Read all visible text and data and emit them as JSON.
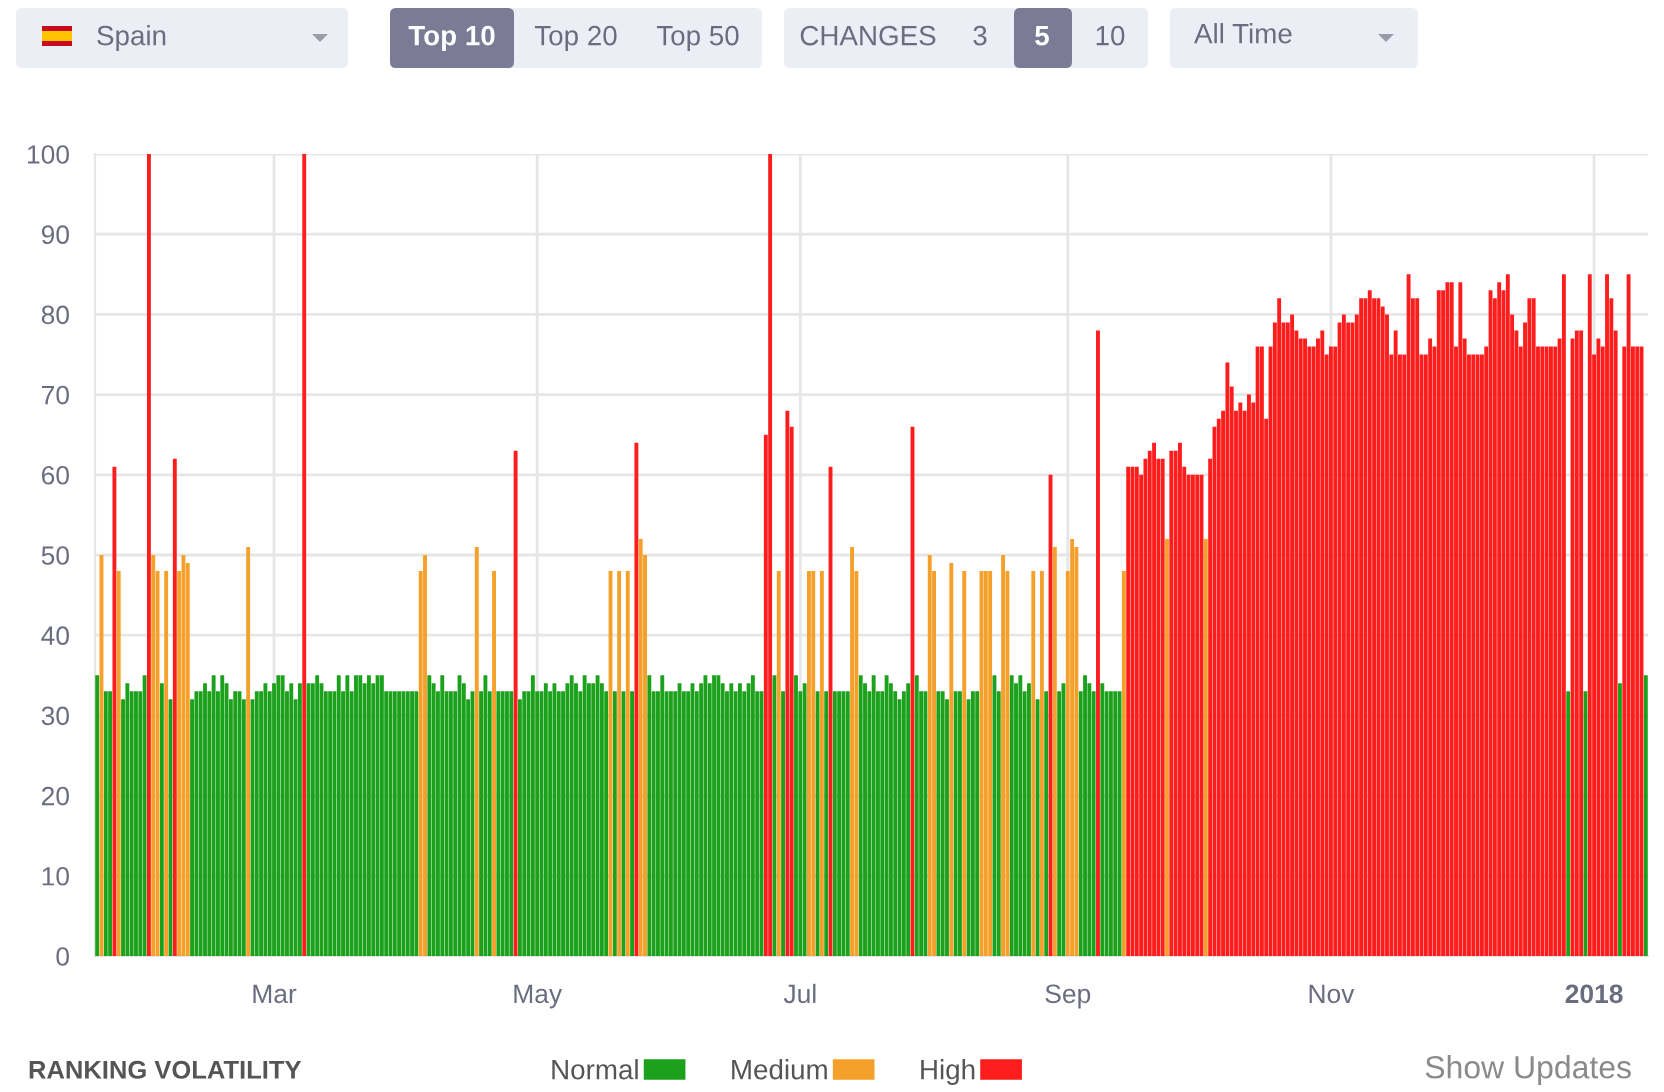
{
  "chart_data": {
    "type": "bar",
    "title": "RANKING VOLATILITY",
    "annotations": [
      "Spain",
      "Top 10",
      "Top 20",
      "Top 50",
      "CHANGES",
      "3",
      "5",
      "10",
      "All Time",
      "Show Updates"
    ],
    "series": [
      {
        "name": "Normal",
        "color": "#1ca11c",
        "x": [
          "2017-01-19",
          "2017-01-21",
          "2017-01-22",
          "2017-01-25",
          "2017-01-26",
          "2017-01-27",
          "2017-01-28",
          "2017-01-29",
          "2017-01-30",
          "2017-02-03",
          "2017-02-05",
          "2017-02-10",
          "2017-02-11",
          "2017-02-12",
          "2017-02-13",
          "2017-02-14",
          "2017-02-15",
          "2017-02-16",
          "2017-02-17",
          "2017-02-18",
          "2017-02-19",
          "2017-02-20",
          "2017-02-21",
          "2017-02-22",
          "2017-02-24",
          "2017-02-25",
          "2017-02-26",
          "2017-02-27",
          "2017-02-28",
          "2017-03-01",
          "2017-03-02",
          "2017-03-03",
          "2017-03-04",
          "2017-03-05",
          "2017-03-06",
          "2017-03-07",
          "2017-03-09",
          "2017-03-10",
          "2017-03-11",
          "2017-03-12",
          "2017-03-13",
          "2017-03-14",
          "2017-03-15",
          "2017-03-16",
          "2017-03-17",
          "2017-03-18",
          "2017-03-19",
          "2017-03-20",
          "2017-03-21",
          "2017-03-22",
          "2017-03-23",
          "2017-03-24",
          "2017-03-25",
          "2017-03-26",
          "2017-03-27",
          "2017-03-28",
          "2017-03-29",
          "2017-03-30",
          "2017-03-31",
          "2017-04-01",
          "2017-04-02",
          "2017-04-03",
          "2017-04-06",
          "2017-04-07",
          "2017-04-08",
          "2017-04-09",
          "2017-04-10",
          "2017-04-11",
          "2017-04-12",
          "2017-04-13",
          "2017-04-14",
          "2017-04-15",
          "2017-04-16",
          "2017-04-18",
          "2017-04-19",
          "2017-04-20",
          "2017-04-22",
          "2017-04-23",
          "2017-04-24",
          "2017-04-25",
          "2017-04-27",
          "2017-04-28",
          "2017-04-29",
          "2017-04-30",
          "2017-05-01",
          "2017-05-02",
          "2017-05-03",
          "2017-05-04",
          "2017-05-05",
          "2017-05-06",
          "2017-05-07",
          "2017-05-08",
          "2017-05-09",
          "2017-05-10",
          "2017-05-11",
          "2017-05-12",
          "2017-05-13",
          "2017-05-14",
          "2017-05-15",
          "2017-05-16",
          "2017-05-17",
          "2017-05-19",
          "2017-05-21",
          "2017-05-23",
          "2017-05-27",
          "2017-05-28",
          "2017-05-29",
          "2017-05-30",
          "2017-05-31",
          "2017-06-01",
          "2017-06-02",
          "2017-06-03",
          "2017-06-04",
          "2017-06-05",
          "2017-06-06",
          "2017-06-07",
          "2017-06-08",
          "2017-06-09",
          "2017-06-10",
          "2017-06-11",
          "2017-06-12",
          "2017-06-13",
          "2017-06-14",
          "2017-06-15",
          "2017-06-16",
          "2017-06-17",
          "2017-06-18",
          "2017-06-19",
          "2017-06-20",
          "2017-06-21",
          "2017-06-22",
          "2017-06-25",
          "2017-06-27",
          "2017-06-30",
          "2017-07-01",
          "2017-07-02",
          "2017-07-05",
          "2017-07-07",
          "2017-07-09",
          "2017-07-10",
          "2017-07-11",
          "2017-07-12",
          "2017-07-15",
          "2017-07-16",
          "2017-07-17",
          "2017-07-18",
          "2017-07-19",
          "2017-07-20",
          "2017-07-21",
          "2017-07-22",
          "2017-07-23",
          "2017-07-24",
          "2017-07-25",
          "2017-07-26",
          "2017-07-28",
          "2017-07-29",
          "2017-07-30",
          "2017-08-02",
          "2017-08-03",
          "2017-08-04",
          "2017-08-06",
          "2017-08-07",
          "2017-08-09",
          "2017-08-10",
          "2017-08-11",
          "2017-08-15",
          "2017-08-16",
          "2017-08-19",
          "2017-08-20",
          "2017-08-21",
          "2017-08-22",
          "2017-08-23",
          "2017-08-25",
          "2017-08-27",
          "2017-08-30",
          "2017-08-31",
          "2017-09-04",
          "2017-09-05",
          "2017-09-06",
          "2017-09-07",
          "2017-09-09",
          "2017-09-10",
          "2017-09-11",
          "2017-09-12",
          "2017-09-13",
          "2017-12-26",
          "2017-12-30",
          "2018-01-07",
          "2018-01-13"
        ],
        "values": [
          35,
          33,
          33,
          32,
          34,
          33,
          33,
          33,
          35,
          34,
          32,
          32,
          33,
          33,
          34,
          33,
          35,
          33,
          35,
          34,
          32,
          33,
          33,
          32,
          32,
          33,
          33,
          34,
          33,
          34,
          35,
          35,
          33,
          34,
          32,
          34,
          34,
          34,
          35,
          34,
          33,
          33,
          33,
          35,
          33,
          35,
          33,
          35,
          35,
          34,
          35,
          34,
          35,
          35,
          33,
          33,
          33,
          33,
          33,
          33,
          33,
          33,
          35,
          34,
          33,
          35,
          33,
          33,
          33,
          35,
          34,
          32,
          33,
          33,
          35,
          33,
          33,
          33,
          33,
          33,
          32,
          33,
          33,
          35,
          33,
          33,
          34,
          33,
          34,
          33,
          33,
          34,
          35,
          34,
          33,
          35,
          34,
          34,
          35,
          34,
          33,
          33,
          33,
          33,
          35,
          33,
          33,
          35,
          33,
          33,
          33,
          34,
          33,
          33,
          34,
          33,
          34,
          35,
          34,
          35,
          35,
          34,
          33,
          34,
          33,
          34,
          33,
          34,
          35,
          33,
          33,
          35,
          33,
          35,
          33,
          34,
          33,
          33,
          33,
          33,
          33,
          33,
          35,
          34,
          33,
          35,
          33,
          33,
          35,
          34,
          33,
          32,
          33,
          34,
          35,
          33,
          33,
          33,
          33,
          32,
          33,
          33,
          32,
          33,
          33,
          35,
          33,
          35,
          34,
          35,
          33,
          34,
          32,
          33,
          33,
          34,
          33,
          35,
          34,
          33,
          34,
          33,
          33,
          33,
          33,
          33,
          33,
          34,
          35
        ]
      },
      {
        "name": "Medium",
        "color": "#f4a02a",
        "x": [
          "2017-01-20",
          "2017-01-24",
          "2017-02-01",
          "2017-02-02",
          "2017-02-04",
          "2017-02-07",
          "2017-02-08",
          "2017-02-09",
          "2017-02-23",
          "2017-04-04",
          "2017-04-05",
          "2017-04-17",
          "2017-04-21",
          "2017-05-18",
          "2017-05-20",
          "2017-05-22",
          "2017-05-25",
          "2017-05-26",
          "2017-06-26",
          "2017-07-03",
          "2017-07-04",
          "2017-07-06",
          "2017-07-13",
          "2017-07-14",
          "2017-07-31",
          "2017-08-01",
          "2017-08-05",
          "2017-08-08",
          "2017-08-12",
          "2017-08-13",
          "2017-08-14",
          "2017-08-17",
          "2017-08-18",
          "2017-08-24",
          "2017-08-26",
          "2017-08-29",
          "2017-09-01",
          "2017-09-02",
          "2017-09-03",
          "2017-09-14",
          "2017-09-24",
          "2017-10-03"
        ],
        "values": [
          50,
          48,
          50,
          48,
          48,
          48,
          50,
          49,
          51,
          48,
          50,
          51,
          48,
          48,
          48,
          48,
          52,
          50,
          48,
          48,
          48,
          48,
          51,
          48,
          50,
          48,
          49,
          48,
          48,
          48,
          48,
          50,
          48,
          48,
          48,
          51,
          48,
          52,
          51,
          48,
          52,
          52
        ]
      },
      {
        "name": "High",
        "color": "#fd1d1d",
        "x": [
          "2017-01-23",
          "2017-01-31",
          "2017-02-06",
          "2017-03-08",
          "2017-04-26",
          "2017-05-24",
          "2017-06-23",
          "2017-06-24",
          "2017-06-28",
          "2017-06-29",
          "2017-07-08",
          "2017-07-27",
          "2017-08-28",
          "2017-09-08",
          "2017-09-15",
          "2017-09-16",
          "2017-09-17",
          "2017-09-18",
          "2017-09-19",
          "2017-09-20",
          "2017-09-21",
          "2017-09-22",
          "2017-09-23",
          "2017-09-25",
          "2017-09-26",
          "2017-09-27",
          "2017-09-28",
          "2017-09-29",
          "2017-09-30",
          "2017-10-01",
          "2017-10-02",
          "2017-10-04",
          "2017-10-05",
          "2017-10-06",
          "2017-10-07",
          "2017-10-08",
          "2017-10-09",
          "2017-10-10",
          "2017-10-11",
          "2017-10-12",
          "2017-10-13",
          "2017-10-14",
          "2017-10-15",
          "2017-10-16",
          "2017-10-17",
          "2017-10-18",
          "2017-10-19",
          "2017-10-20",
          "2017-10-21",
          "2017-10-22",
          "2017-10-23",
          "2017-10-24",
          "2017-10-25",
          "2017-10-26",
          "2017-10-27",
          "2017-10-28",
          "2017-10-29",
          "2017-10-30",
          "2017-10-31",
          "2017-11-01",
          "2017-11-02",
          "2017-11-03",
          "2017-11-04",
          "2017-11-05",
          "2017-11-06",
          "2017-11-07",
          "2017-11-08",
          "2017-11-09",
          "2017-11-10",
          "2017-11-11",
          "2017-11-12",
          "2017-11-13",
          "2017-11-14",
          "2017-11-15",
          "2017-11-16",
          "2017-11-17",
          "2017-11-18",
          "2017-11-19",
          "2017-11-20",
          "2017-11-21",
          "2017-11-22",
          "2017-11-23",
          "2017-11-24",
          "2017-11-25",
          "2017-11-26",
          "2017-11-27",
          "2017-11-28",
          "2017-11-29",
          "2017-11-30",
          "2017-12-01",
          "2017-12-02",
          "2017-12-03",
          "2017-12-04",
          "2017-12-05",
          "2017-12-06",
          "2017-12-07",
          "2017-12-08",
          "2017-12-09",
          "2017-12-10",
          "2017-12-11",
          "2017-12-12",
          "2017-12-13",
          "2017-12-14",
          "2017-12-15",
          "2017-12-16",
          "2017-12-17",
          "2017-12-18",
          "2017-12-19",
          "2017-12-20",
          "2017-12-21",
          "2017-12-22",
          "2017-12-23",
          "2017-12-24",
          "2017-12-25",
          "2017-12-27",
          "2017-12-28",
          "2017-12-29",
          "2017-12-31",
          "2018-01-01",
          "2018-01-02",
          "2018-01-03",
          "2018-01-04",
          "2018-01-05",
          "2018-01-06",
          "2018-01-08",
          "2018-01-09",
          "2018-01-10",
          "2018-01-11",
          "2018-01-12"
        ],
        "values": [
          61,
          100,
          62,
          100,
          63,
          64,
          65,
          100,
          68,
          66,
          61,
          66,
          60,
          78,
          61,
          61,
          61,
          60,
          62,
          63,
          64,
          62,
          62,
          63,
          63,
          64,
          61,
          60,
          60,
          60,
          60,
          62,
          66,
          67,
          68,
          74,
          71,
          68,
          69,
          68,
          70,
          69,
          76,
          76,
          67,
          76,
          79,
          82,
          79,
          79,
          80,
          78,
          77,
          77,
          76,
          76,
          77,
          78,
          75,
          76,
          76,
          79,
          80,
          79,
          79,
          80,
          82,
          82,
          83,
          82,
          82,
          81,
          80,
          75,
          78,
          75,
          75,
          85,
          82,
          82,
          75,
          75,
          77,
          76,
          83,
          83,
          84,
          84,
          76,
          84,
          77,
          75,
          75,
          75,
          75,
          76,
          83,
          82,
          84,
          83,
          85,
          80,
          78,
          76,
          79,
          82,
          82,
          76,
          76,
          76,
          76,
          76,
          77,
          85,
          77,
          78,
          78,
          85,
          75,
          77,
          76,
          85,
          82,
          78,
          76,
          85,
          76,
          76,
          76
        ]
      }
    ],
    "xlim": [
      "2017-01-18T12:00",
      "2018-01-13T12:00"
    ],
    "xticks": [
      {
        "value": "2017-03-01",
        "label": "Mar"
      },
      {
        "value": "2017-05-01",
        "label": "May"
      },
      {
        "value": "2017-07-01",
        "label": "Jul"
      },
      {
        "value": "2017-09-01",
        "label": "Sep"
      },
      {
        "value": "2017-11-01",
        "label": "Nov"
      },
      {
        "value": "2018-01-01",
        "label": "2018"
      }
    ],
    "ylim": [
      0,
      100
    ],
    "yticks": [
      0,
      10,
      20,
      30,
      40,
      50,
      60,
      70,
      80,
      90,
      100
    ],
    "grid": true,
    "legend": "bottom"
  }
}
